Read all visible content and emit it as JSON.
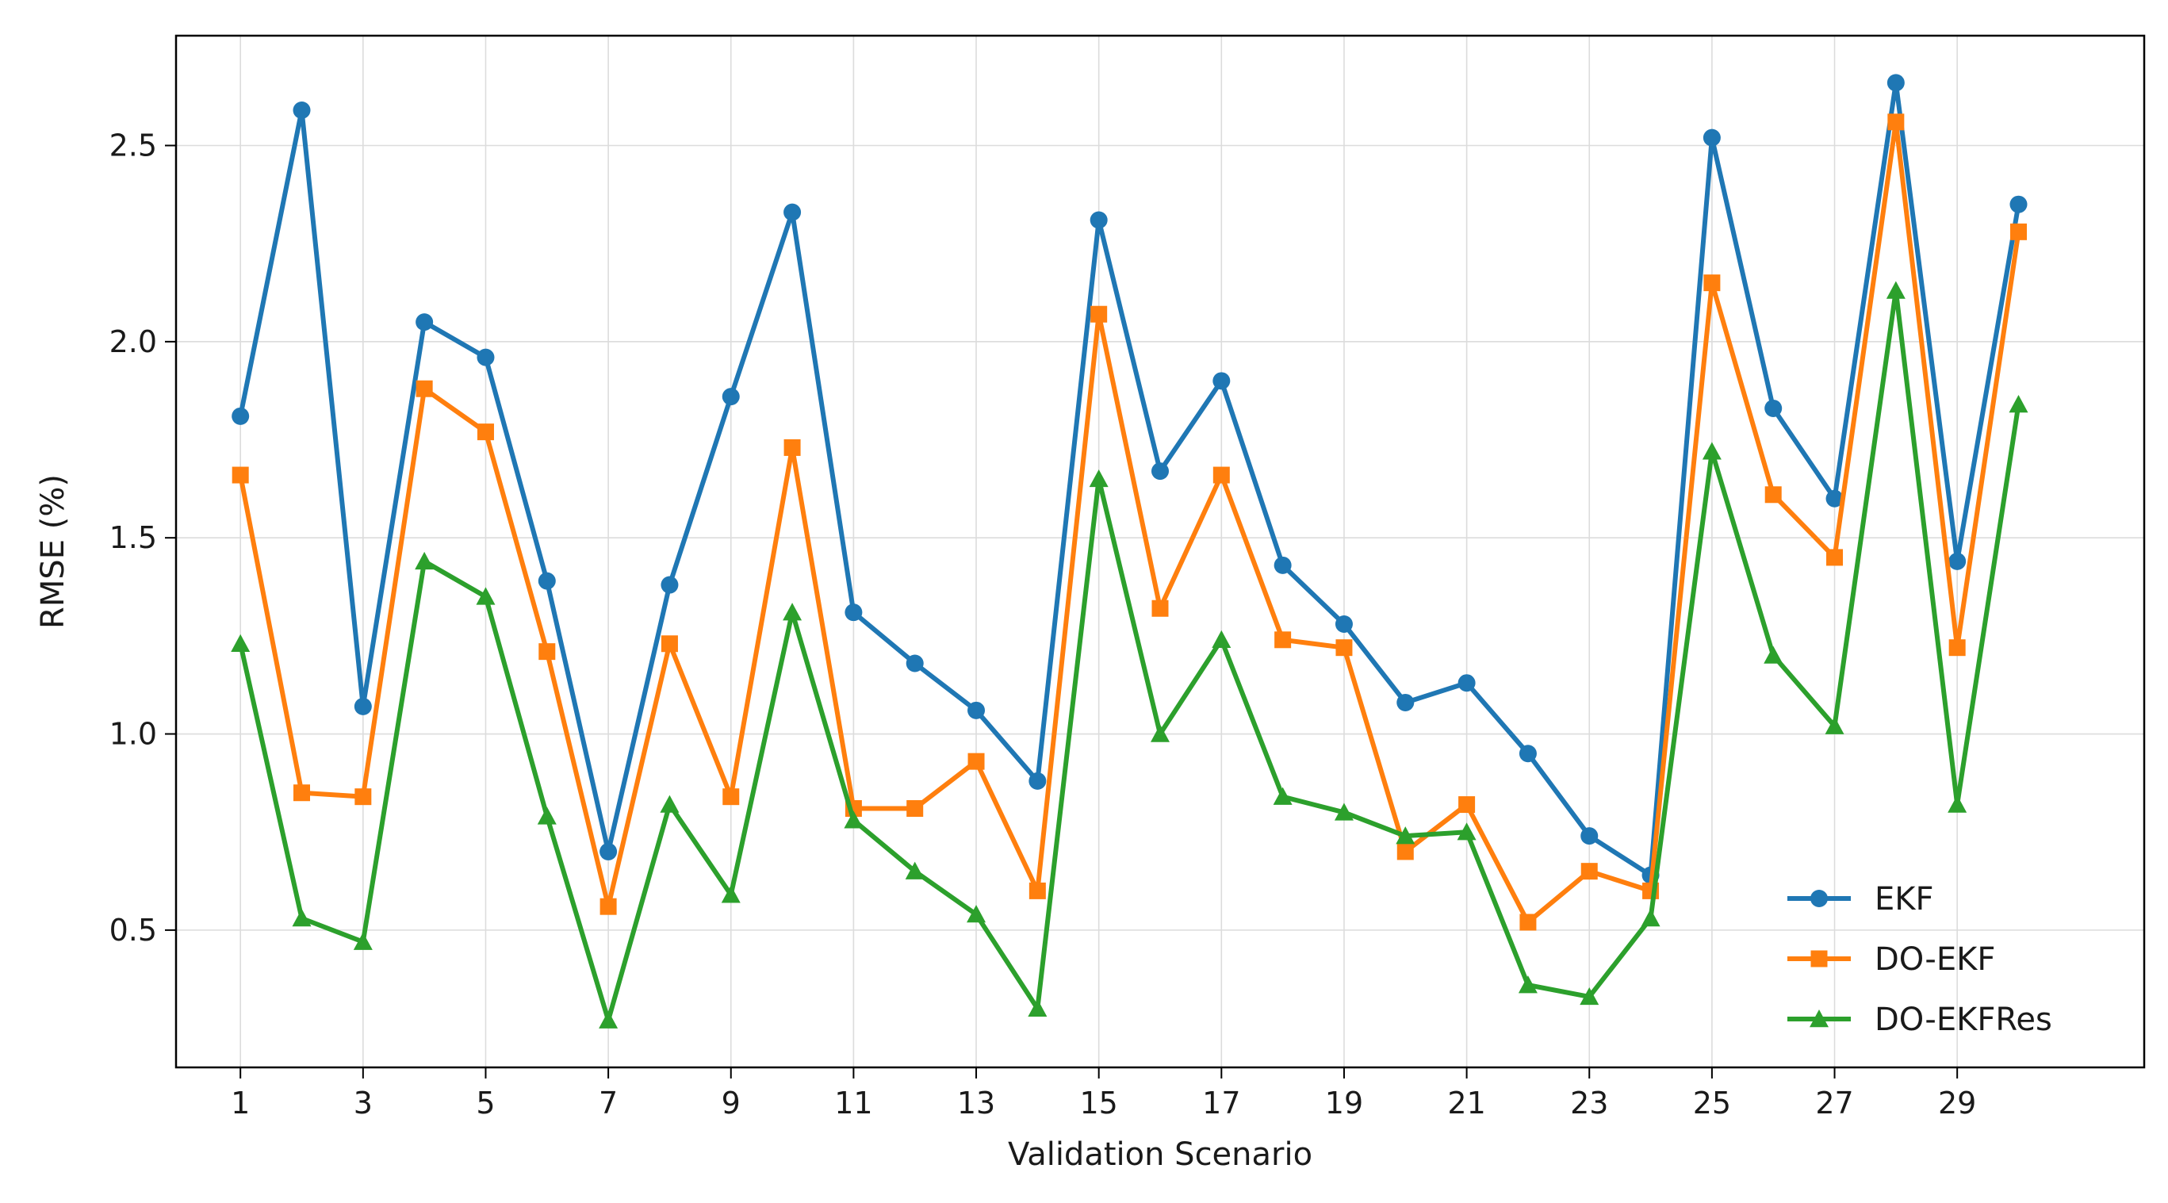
{
  "chart_data": {
    "type": "line",
    "title": "",
    "xlabel": "Validation Scenario",
    "ylabel": "RMSE (%)",
    "x": [
      1,
      2,
      3,
      4,
      5,
      6,
      7,
      8,
      9,
      10,
      11,
      12,
      13,
      14,
      15,
      16,
      17,
      18,
      19,
      20,
      21,
      22,
      23,
      24,
      25,
      26,
      27,
      28,
      29,
      30
    ],
    "xticks": [
      1,
      3,
      5,
      7,
      9,
      11,
      13,
      15,
      17,
      19,
      21,
      23,
      25,
      27,
      29
    ],
    "xlim": [
      -0.05,
      32.05
    ],
    "yticks": [
      0.5,
      1.0,
      1.5,
      2.0,
      2.5
    ],
    "ytick_labels": [
      "0.5",
      "1.0",
      "1.5",
      "2.0",
      "2.5"
    ],
    "ylim": [
      0.15,
      2.78
    ],
    "grid": true,
    "legend_position": "lower right",
    "series": [
      {
        "name": "EKF",
        "color": "#1f77b4",
        "marker": "circle",
        "values": [
          1.81,
          2.59,
          1.07,
          2.05,
          1.96,
          1.39,
          0.7,
          1.38,
          1.86,
          2.33,
          1.31,
          1.18,
          1.06,
          0.88,
          2.31,
          1.67,
          1.9,
          1.43,
          1.28,
          1.08,
          1.13,
          0.95,
          0.74,
          0.64,
          2.52,
          1.83,
          1.6,
          2.66,
          1.44,
          2.35
        ]
      },
      {
        "name": "DO-EKF",
        "color": "#ff7f0e",
        "marker": "square",
        "values": [
          1.66,
          0.85,
          0.84,
          1.88,
          1.77,
          1.21,
          0.56,
          1.23,
          0.84,
          1.73,
          0.81,
          0.81,
          0.93,
          0.6,
          2.07,
          1.32,
          1.66,
          1.24,
          1.22,
          0.7,
          0.82,
          0.52,
          0.65,
          0.6,
          2.15,
          1.61,
          1.45,
          2.56,
          1.22,
          2.28
        ]
      },
      {
        "name": "DO-EKFRes",
        "color": "#2ca02c",
        "marker": "triangle",
        "values": [
          1.23,
          0.53,
          0.47,
          1.44,
          1.35,
          0.79,
          0.27,
          0.82,
          0.59,
          1.31,
          0.78,
          0.65,
          0.54,
          0.3,
          1.65,
          1.0,
          1.24,
          0.84,
          0.8,
          0.74,
          0.75,
          0.36,
          0.33,
          0.53,
          1.72,
          1.2,
          1.02,
          2.13,
          0.82,
          1.84
        ]
      }
    ]
  }
}
